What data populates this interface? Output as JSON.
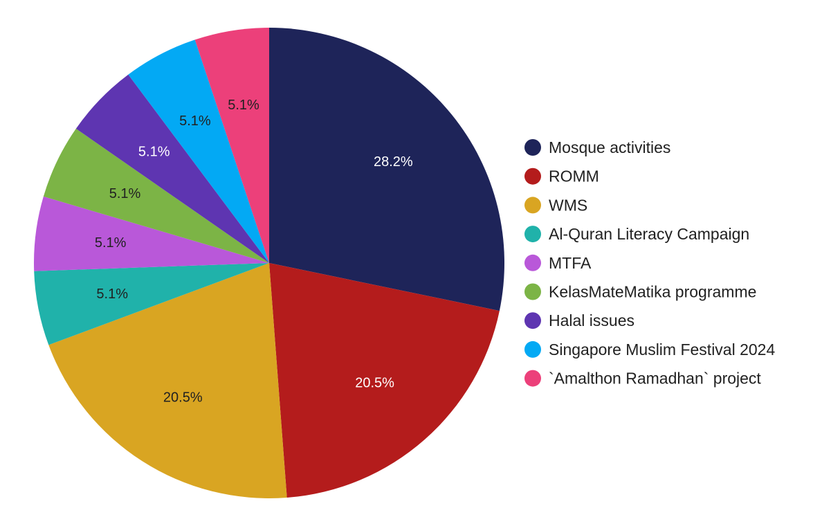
{
  "chart_data": {
    "type": "pie",
    "legend_position": "right",
    "slices": [
      {
        "label": "Mosque activities",
        "value": 28.2,
        "display": "28.2%",
        "color": "#1e2459",
        "text_color": "#ffffff"
      },
      {
        "label": "ROMM",
        "value": 20.5,
        "display": "20.5%",
        "color": "#b41c1c",
        "text_color": "#ffffff"
      },
      {
        "label": "WMS",
        "value": 20.5,
        "display": "20.5%",
        "color": "#d9a522",
        "text_color": "#212121"
      },
      {
        "label": "Al-Quran Literacy Campaign",
        "value": 5.1,
        "display": "5.1%",
        "color": "#20b2aa",
        "text_color": "#212121"
      },
      {
        "label": "MTFA",
        "value": 5.1,
        "display": "5.1%",
        "color": "#b958d9",
        "text_color": "#212121"
      },
      {
        "label": "KelasMateMatika programme",
        "value": 5.1,
        "display": "5.1%",
        "color": "#7cb446",
        "text_color": "#212121"
      },
      {
        "label": "Halal issues",
        "value": 5.1,
        "display": "5.1%",
        "color": "#5e35b1",
        "text_color": "#ffffff"
      },
      {
        "label": "Singapore Muslim Festival 2024",
        "value": 5.1,
        "display": "5.1%",
        "color": "#03a9f4",
        "text_color": "#212121"
      },
      {
        "label": "`Amalthon Ramadhan` project",
        "value": 5.1,
        "display": "5.1%",
        "color": "#ec407a",
        "text_color": "#212121"
      }
    ]
  }
}
